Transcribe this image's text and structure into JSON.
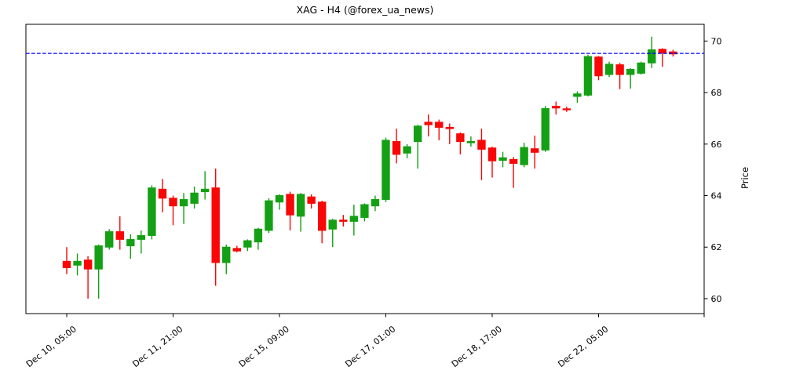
{
  "title": "XAG - H4 (@forex_ua_news)",
  "y_axis": {
    "label": "Price",
    "side": "right",
    "ticks": [
      60,
      62,
      64,
      66,
      68,
      70
    ]
  },
  "x_axis": {
    "tick_labels": [
      "Dec 10, 05:00",
      "Dec 11, 21:00",
      "Dec 15, 09:00",
      "Dec 17, 01:00",
      "Dec 18, 17:00",
      "Dec 22, 05:00"
    ],
    "tick_candle_indices": [
      0,
      10,
      20,
      30,
      40,
      50
    ],
    "has_unlabeled_edge_tick": true
  },
  "hline": {
    "price": 69.52,
    "color": "#0000ff",
    "style": "dashed"
  },
  "colors": {
    "up": "#14a014",
    "down": "#f90606",
    "axis": "#000000",
    "hline": "#0000ff",
    "background": "#ffffff"
  },
  "chart_data": {
    "type": "candlestick",
    "title": "XAG - H4 (@forex_ua_news)",
    "symbol": "XAG",
    "timeframe": "H4",
    "source_handle": "@forex_ua_news",
    "ylabel": "Price",
    "ylim": [
      59.42,
      70.65
    ],
    "y_ticks": [
      60,
      62,
      64,
      66,
      68,
      70
    ],
    "x_tick_labels": [
      "Dec 10, 05:00",
      "Dec 11, 21:00",
      "Dec 15, 09:00",
      "Dec 17, 01:00",
      "Dec 18, 17:00",
      "Dec 22, 05:00"
    ],
    "x_tick_candle_indices": [
      0,
      10,
      20,
      30,
      40,
      50
    ],
    "horizontal_line_price": 69.52,
    "legend": "none",
    "grid": false,
    "candles_ohlc": [
      [
        61.45,
        62.0,
        60.95,
        61.2
      ],
      [
        61.3,
        61.75,
        60.9,
        61.45
      ],
      [
        61.5,
        61.65,
        60.0,
        61.15
      ],
      [
        61.15,
        62.1,
        60.0,
        62.05
      ],
      [
        62.0,
        62.7,
        61.9,
        62.6
      ],
      [
        62.6,
        63.2,
        61.9,
        62.3
      ],
      [
        62.05,
        62.5,
        61.55,
        62.3
      ],
      [
        62.3,
        62.65,
        61.75,
        62.45
      ],
      [
        62.45,
        64.4,
        62.3,
        64.3
      ],
      [
        64.25,
        64.65,
        63.35,
        63.9
      ],
      [
        63.9,
        64.0,
        62.85,
        63.6
      ],
      [
        63.6,
        64.1,
        62.9,
        63.85
      ],
      [
        63.7,
        64.35,
        63.5,
        64.1
      ],
      [
        64.15,
        64.95,
        63.85,
        64.25
      ],
      [
        64.3,
        65.05,
        60.5,
        61.4
      ],
      [
        61.4,
        62.1,
        60.95,
        62.0
      ],
      [
        61.95,
        62.05,
        61.8,
        61.85
      ],
      [
        62.0,
        62.3,
        61.85,
        62.25
      ],
      [
        62.2,
        62.75,
        61.9,
        62.7
      ],
      [
        62.65,
        63.9,
        62.55,
        63.8
      ],
      [
        63.75,
        64.05,
        63.45,
        64.0
      ],
      [
        64.05,
        64.15,
        62.65,
        63.25
      ],
      [
        63.2,
        64.1,
        62.6,
        64.05
      ],
      [
        63.95,
        64.05,
        63.5,
        63.7
      ],
      [
        63.75,
        63.8,
        62.15,
        62.65
      ],
      [
        62.7,
        63.1,
        62.0,
        63.05
      ],
      [
        63.05,
        63.25,
        62.8,
        63.0
      ],
      [
        63.0,
        63.65,
        62.45,
        63.2
      ],
      [
        63.15,
        63.7,
        63.0,
        63.65
      ],
      [
        63.6,
        64.0,
        63.4,
        63.85
      ],
      [
        63.85,
        66.25,
        63.75,
        66.15
      ],
      [
        66.1,
        66.6,
        65.25,
        65.6
      ],
      [
        65.65,
        66.0,
        65.45,
        65.9
      ],
      [
        66.1,
        66.75,
        65.05,
        66.7
      ],
      [
        66.85,
        67.15,
        66.3,
        66.75
      ],
      [
        66.85,
        66.95,
        66.15,
        66.65
      ],
      [
        66.65,
        66.8,
        66.0,
        66.6
      ],
      [
        66.4,
        66.45,
        65.6,
        66.1
      ],
      [
        66.05,
        66.3,
        65.9,
        66.1
      ],
      [
        66.15,
        66.6,
        64.6,
        65.8
      ],
      [
        65.85,
        65.9,
        64.7,
        65.35
      ],
      [
        65.37,
        65.7,
        65.1,
        65.47
      ],
      [
        65.4,
        65.5,
        64.3,
        65.25
      ],
      [
        65.2,
        66.05,
        65.1,
        65.87
      ],
      [
        65.82,
        66.33,
        65.05,
        65.68
      ],
      [
        65.77,
        67.48,
        65.7,
        67.38
      ],
      [
        67.47,
        67.65,
        67.15,
        67.4
      ],
      [
        67.37,
        67.45,
        67.25,
        67.33
      ],
      [
        67.85,
        68.05,
        67.6,
        67.95
      ],
      [
        67.9,
        69.47,
        67.85,
        69.4
      ],
      [
        69.38,
        69.42,
        68.48,
        68.65
      ],
      [
        68.7,
        69.2,
        68.6,
        69.1
      ],
      [
        69.08,
        69.15,
        68.13,
        68.7
      ],
      [
        68.7,
        68.95,
        68.15,
        68.9
      ],
      [
        68.75,
        69.2,
        68.7,
        69.15
      ],
      [
        69.15,
        70.17,
        68.95,
        69.66
      ],
      [
        69.68,
        69.72,
        69.0,
        69.54
      ],
      [
        69.58,
        69.66,
        69.4,
        69.5
      ]
    ]
  }
}
